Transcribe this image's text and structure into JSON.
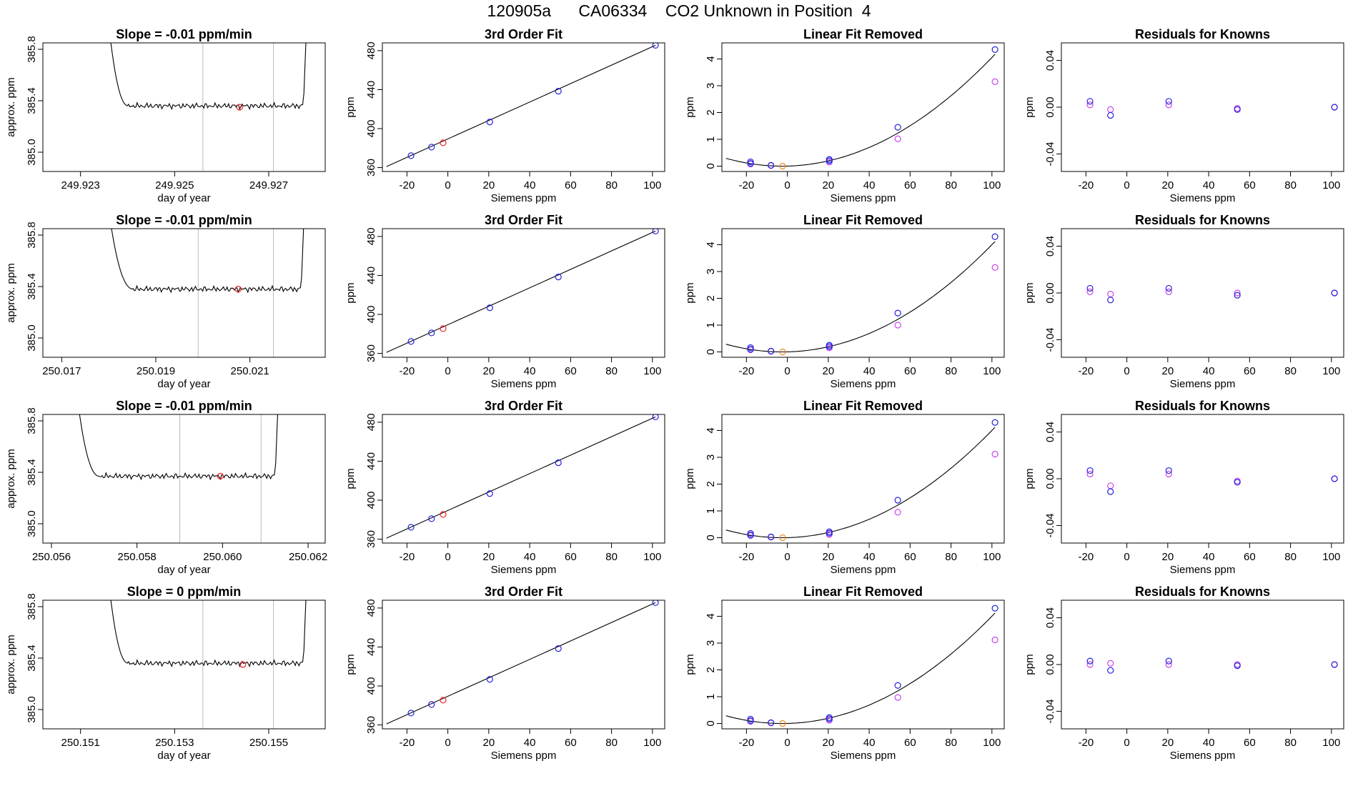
{
  "title": "120905a      CA06334    CO2 Unknown in Position  4",
  "colors": {
    "blue": "#2222dd",
    "red": "#ee2222",
    "magenta": "#cc44ee",
    "orange": "#ee8822",
    "line": "#000000",
    "vline": "#bbbbbb"
  },
  "chart_data": [
    {
      "panel": "time-series",
      "row": 1,
      "type": "line",
      "title": "Slope =  -0.01  ppm/min",
      "xlabel": "day of year",
      "ylabel": "approx. ppm",
      "xlim": [
        249.9222,
        249.9282
      ],
      "ylim": [
        384.85,
        385.85
      ],
      "xticks": [
        "249.923",
        "249.925",
        "249.927"
      ],
      "xtick_values": [
        249.923,
        249.925,
        249.927
      ],
      "yticks": [
        "385.0",
        "385.4",
        "385.8"
      ],
      "ytick_values": [
        385.0,
        385.4,
        385.8
      ],
      "vlines": [
        249.9256,
        249.9271
      ],
      "marker": {
        "x": 249.92638,
        "y": 385.35
      },
      "trace": {
        "x0": 249.9236,
        "x1": 249.9278,
        "steep_until": 249.924,
        "level": 385.36,
        "start": 385.95,
        "end": 385.95
      }
    },
    {
      "panel": "time-series",
      "row": 2,
      "type": "line",
      "title": "Slope =  -0.01  ppm/min",
      "xlabel": "day of year",
      "ylabel": "approx. ppm",
      "xlim": [
        250.0166,
        250.0226
      ],
      "ylim": [
        384.85,
        385.85
      ],
      "xticks": [
        "250.017",
        "250.019",
        "250.021"
      ],
      "xtick_values": [
        250.017,
        250.019,
        250.021
      ],
      "yticks": [
        "385.0",
        "385.4",
        "385.8"
      ],
      "ytick_values": [
        385.0,
        385.4,
        385.8
      ],
      "vlines": [
        250.0199,
        250.0215
      ],
      "marker": {
        "x": 250.02075,
        "y": 385.38
      },
      "trace": {
        "x0": 250.018,
        "x1": 250.02215,
        "steep_until": 250.0185,
        "level": 385.38,
        "start": 385.95,
        "end": 385.95
      }
    },
    {
      "panel": "time-series",
      "row": 3,
      "type": "line",
      "title": "Slope =  -0.01  ppm/min",
      "xlabel": "day of year",
      "ylabel": "approx. ppm",
      "xlim": [
        250.0558,
        250.0624
      ],
      "ylim": [
        384.85,
        385.85
      ],
      "xticks": [
        "250.056",
        "250.058",
        "250.060",
        "250.062"
      ],
      "xtick_values": [
        250.056,
        250.058,
        250.06,
        250.062
      ],
      "yticks": [
        "385.0",
        "385.4",
        "385.8"
      ],
      "ytick_values": [
        385.0,
        385.4,
        385.8
      ],
      "vlines": [
        250.059,
        250.0609
      ],
      "marker": {
        "x": 250.05995,
        "y": 385.37
      },
      "trace": {
        "x0": 250.0566,
        "x1": 250.0613,
        "steep_until": 250.0571,
        "level": 385.37,
        "start": 385.95,
        "end": 385.95
      }
    },
    {
      "panel": "time-series",
      "row": 4,
      "type": "line",
      "title": "Slope =  0  ppm/min",
      "xlabel": "day of year",
      "ylabel": "approx. ppm",
      "xlim": [
        250.1502,
        250.1562
      ],
      "ylim": [
        384.85,
        385.85
      ],
      "xticks": [
        "250.151",
        "250.153",
        "250.155"
      ],
      "xtick_values": [
        250.151,
        250.153,
        250.155
      ],
      "yticks": [
        "385.0",
        "385.4",
        "385.8"
      ],
      "ytick_values": [
        385.0,
        385.4,
        385.8
      ],
      "vlines": [
        250.1536,
        250.1551
      ],
      "marker": {
        "x": 250.15445,
        "y": 385.35
      },
      "trace": {
        "x0": 250.1516,
        "x1": 250.1558,
        "steep_until": 250.152,
        "level": 385.36,
        "start": 385.95,
        "end": 385.95
      }
    },
    {
      "panel": "fit",
      "row": 1,
      "type": "scatter",
      "title": "3rd Order Fit",
      "xlabel": "Siemens ppm",
      "ylabel": "ppm",
      "xlim": [
        -32,
        106
      ],
      "ylim": [
        356,
        488
      ],
      "xticks": [
        "-20",
        "0",
        "20",
        "40",
        "60",
        "80",
        "100"
      ],
      "xtick_values": [
        -20,
        0,
        20,
        40,
        60,
        80,
        100
      ],
      "yticks": [
        "360",
        "400",
        "440",
        "480"
      ],
      "ytick_values": [
        360,
        400,
        440,
        480
      ],
      "line": {
        "x": [
          -30,
          101.5
        ],
        "y": [
          361,
          485.5
        ]
      },
      "knowns": {
        "x": [
          -18,
          -8,
          20.5,
          54,
          101.5
        ],
        "y": [
          372.2,
          381,
          406.8,
          438.4,
          485.5
        ]
      },
      "unknown": {
        "x": [
          -2.3
        ],
        "y": [
          385.4
        ]
      }
    },
    {
      "panel": "fit",
      "row": 2,
      "type": "scatter",
      "title": "3rd Order Fit",
      "xlabel": "Siemens ppm",
      "ylabel": "ppm",
      "xlim": [
        -32,
        106
      ],
      "ylim": [
        356,
        488
      ],
      "xticks": [
        "-20",
        "0",
        "20",
        "40",
        "60",
        "80",
        "100"
      ],
      "xtick_values": [
        -20,
        0,
        20,
        40,
        60,
        80,
        100
      ],
      "yticks": [
        "360",
        "400",
        "440",
        "480"
      ],
      "ytick_values": [
        360,
        400,
        440,
        480
      ],
      "line": {
        "x": [
          -30,
          101.5
        ],
        "y": [
          361,
          485.5
        ]
      },
      "knowns": {
        "x": [
          -18,
          -8,
          20.5,
          54,
          101.5
        ],
        "y": [
          372.2,
          381,
          406.8,
          438.4,
          485.5
        ]
      },
      "unknown": {
        "x": [
          -2.3
        ],
        "y": [
          385.4
        ]
      }
    },
    {
      "panel": "fit",
      "row": 3,
      "type": "scatter",
      "title": "3rd Order Fit",
      "xlabel": "Siemens ppm",
      "ylabel": "ppm",
      "xlim": [
        -32,
        106
      ],
      "ylim": [
        356,
        488
      ],
      "xticks": [
        "-20",
        "0",
        "20",
        "40",
        "60",
        "80",
        "100"
      ],
      "xtick_values": [
        -20,
        0,
        20,
        40,
        60,
        80,
        100
      ],
      "yticks": [
        "360",
        "400",
        "440",
        "480"
      ],
      "ytick_values": [
        360,
        400,
        440,
        480
      ],
      "line": {
        "x": [
          -30,
          101.5
        ],
        "y": [
          361,
          485.5
        ]
      },
      "knowns": {
        "x": [
          -18,
          -8,
          20.5,
          54,
          101.5
        ],
        "y": [
          372.2,
          381,
          406.8,
          438.4,
          485.5
        ]
      },
      "unknown": {
        "x": [
          -2.3
        ],
        "y": [
          385.4
        ]
      }
    },
    {
      "panel": "fit",
      "row": 4,
      "type": "scatter",
      "title": "3rd Order Fit",
      "xlabel": "Siemens ppm",
      "ylabel": "ppm",
      "xlim": [
        -32,
        106
      ],
      "ylim": [
        356,
        488
      ],
      "xticks": [
        "-20",
        "0",
        "20",
        "40",
        "60",
        "80",
        "100"
      ],
      "xtick_values": [
        -20,
        0,
        20,
        40,
        60,
        80,
        100
      ],
      "yticks": [
        "360",
        "400",
        "440",
        "480"
      ],
      "ytick_values": [
        360,
        400,
        440,
        480
      ],
      "line": {
        "x": [
          -30,
          101.5
        ],
        "y": [
          361,
          485.5
        ]
      },
      "knowns": {
        "x": [
          -18,
          -8,
          20.5,
          54,
          101.5
        ],
        "y": [
          372.2,
          381,
          406.8,
          438.4,
          485.5
        ]
      },
      "unknown": {
        "x": [
          -2.3
        ],
        "y": [
          385.4
        ]
      }
    },
    {
      "panel": "linear-removed",
      "row": 1,
      "type": "scatter",
      "title": "Linear Fit Removed",
      "xlabel": "Siemens ppm",
      "ylabel": "ppm",
      "xlim": [
        -32,
        106
      ],
      "ylim": [
        -0.2,
        4.6
      ],
      "xticks": [
        "-20",
        "0",
        "20",
        "40",
        "60",
        "80",
        "100"
      ],
      "xtick_values": [
        -20,
        0,
        20,
        40,
        60,
        80,
        100
      ],
      "yticks": [
        "0",
        "1",
        "2",
        "3",
        "4"
      ],
      "ytick_values": [
        0,
        1,
        2,
        3,
        4
      ],
      "curve": {
        "x_from": -30,
        "x_to": 101.5,
        "vertex_x": -2.5,
        "a": 0.000386
      },
      "knowns_blue": {
        "x": [
          -18,
          -18,
          -8,
          20.5,
          20.5,
          54,
          101.5
        ],
        "y": [
          0.16,
          0.1,
          0.03,
          0.25,
          0.2,
          1.45,
          4.35
        ]
      },
      "knowns_magenta": {
        "x": [
          -18,
          -8,
          20.5,
          54,
          101.5
        ],
        "y": [
          0.08,
          0.02,
          0.15,
          1.02,
          3.15
        ]
      },
      "unknown": {
        "x": [
          -2.3
        ],
        "y": [
          0.0
        ]
      }
    },
    {
      "panel": "linear-removed",
      "row": 2,
      "type": "scatter",
      "title": "Linear Fit Removed",
      "xlabel": "Siemens ppm",
      "ylabel": "ppm",
      "xlim": [
        -32,
        106
      ],
      "ylim": [
        -0.2,
        4.6
      ],
      "xticks": [
        "-20",
        "0",
        "20",
        "40",
        "60",
        "80",
        "100"
      ],
      "xtick_values": [
        -20,
        0,
        20,
        40,
        60,
        80,
        100
      ],
      "yticks": [
        "0",
        "1",
        "2",
        "3",
        "4"
      ],
      "ytick_values": [
        0,
        1,
        2,
        3,
        4
      ],
      "curve": {
        "x_from": -30,
        "x_to": 101.5,
        "vertex_x": -2.5,
        "a": 0.000381
      },
      "knowns_blue": {
        "x": [
          -18,
          -18,
          -8,
          20.5,
          20.5,
          54,
          101.5
        ],
        "y": [
          0.16,
          0.1,
          0.03,
          0.25,
          0.2,
          1.45,
          4.3
        ]
      },
      "knowns_magenta": {
        "x": [
          -18,
          -8,
          20.5,
          54,
          101.5
        ],
        "y": [
          0.08,
          0.02,
          0.15,
          1.0,
          3.15
        ]
      },
      "unknown": {
        "x": [
          -2.3
        ],
        "y": [
          0.0
        ]
      }
    },
    {
      "panel": "linear-removed",
      "row": 3,
      "type": "scatter",
      "title": "Linear Fit Removed",
      "xlabel": "Siemens ppm",
      "ylabel": "ppm",
      "xlim": [
        -32,
        106
      ],
      "ylim": [
        -0.2,
        4.6
      ],
      "xticks": [
        "-20",
        "0",
        "20",
        "40",
        "60",
        "80",
        "100"
      ],
      "xtick_values": [
        -20,
        0,
        20,
        40,
        60,
        80,
        100
      ],
      "yticks": [
        "0",
        "1",
        "2",
        "3",
        "4"
      ],
      "ytick_values": [
        0,
        1,
        2,
        3,
        4
      ],
      "curve": {
        "x_from": -30,
        "x_to": 101.5,
        "vertex_x": -2.5,
        "a": 0.000381
      },
      "knowns_blue": {
        "x": [
          -18,
          -18,
          -8,
          20.5,
          20.5,
          54,
          101.5
        ],
        "y": [
          0.16,
          0.1,
          0.03,
          0.22,
          0.17,
          1.4,
          4.3
        ]
      },
      "knowns_magenta": {
        "x": [
          -18,
          -8,
          20.5,
          54,
          101.5
        ],
        "y": [
          0.08,
          0.02,
          0.12,
          0.95,
          3.12
        ]
      },
      "unknown": {
        "x": [
          -2.3
        ],
        "y": [
          0.0
        ]
      }
    },
    {
      "panel": "linear-removed",
      "row": 4,
      "type": "scatter",
      "title": "Linear Fit Removed",
      "xlabel": "Siemens ppm",
      "ylabel": "ppm",
      "xlim": [
        -32,
        106
      ],
      "ylim": [
        -0.2,
        4.6
      ],
      "xticks": [
        "-20",
        "0",
        "20",
        "40",
        "60",
        "80",
        "100"
      ],
      "xtick_values": [
        -20,
        0,
        20,
        40,
        60,
        80,
        100
      ],
      "yticks": [
        "0",
        "1",
        "2",
        "3",
        "4"
      ],
      "ytick_values": [
        0,
        1,
        2,
        3,
        4
      ],
      "curve": {
        "x_from": -30,
        "x_to": 101.5,
        "vertex_x": -2.5,
        "a": 0.000381
      },
      "knowns_blue": {
        "x": [
          -18,
          -18,
          -8,
          20.5,
          20.5,
          54,
          101.5
        ],
        "y": [
          0.16,
          0.1,
          0.03,
          0.22,
          0.17,
          1.42,
          4.3
        ]
      },
      "knowns_magenta": {
        "x": [
          -18,
          -8,
          20.5,
          54,
          101.5
        ],
        "y": [
          0.08,
          0.02,
          0.12,
          0.97,
          3.12
        ]
      },
      "unknown": {
        "x": [
          -2.3
        ],
        "y": [
          0.0
        ]
      }
    },
    {
      "panel": "residuals",
      "row": 1,
      "type": "scatter",
      "title": "Residuals for Knowns",
      "xlabel": "Siemens ppm",
      "ylabel": "ppm",
      "xlim": [
        -32,
        106
      ],
      "ylim": [
        -0.055,
        0.055
      ],
      "xticks": [
        "-20",
        "0",
        "20",
        "40",
        "60",
        "80",
        "100"
      ],
      "xtick_values": [
        -20,
        0,
        20,
        40,
        60,
        80,
        100
      ],
      "yticks": [
        "-0.04",
        "0.00",
        "0.04"
      ],
      "ytick_values": [
        -0.04,
        0.0,
        0.04
      ],
      "blue": {
        "x": [
          -18,
          -8,
          20.5,
          54,
          101.5
        ],
        "y": [
          0.005,
          -0.007,
          0.005,
          -0.002,
          0.0
        ]
      },
      "magenta": {
        "x": [
          -18,
          -8,
          20.5,
          54,
          101.5
        ],
        "y": [
          0.002,
          -0.002,
          0.002,
          -0.001,
          0.0
        ]
      }
    },
    {
      "panel": "residuals",
      "row": 2,
      "type": "scatter",
      "title": "Residuals for Knowns",
      "xlabel": "Siemens ppm",
      "ylabel": "ppm",
      "xlim": [
        -32,
        106
      ],
      "ylim": [
        -0.055,
        0.055
      ],
      "xticks": [
        "-20",
        "0",
        "20",
        "40",
        "60",
        "80",
        "100"
      ],
      "xtick_values": [
        -20,
        0,
        20,
        40,
        60,
        80,
        100
      ],
      "yticks": [
        "-0.04",
        "0.00",
        "0.04"
      ],
      "ytick_values": [
        -0.04,
        0.0,
        0.04
      ],
      "blue": {
        "x": [
          -18,
          -8,
          20.5,
          54,
          101.5
        ],
        "y": [
          0.004,
          -0.006,
          0.004,
          -0.002,
          0.0
        ]
      },
      "magenta": {
        "x": [
          -18,
          -8,
          20.5,
          54,
          101.5
        ],
        "y": [
          0.001,
          -0.001,
          0.001,
          0.0,
          0.0
        ]
      }
    },
    {
      "panel": "residuals",
      "row": 3,
      "type": "scatter",
      "title": "Residuals for Knowns",
      "xlabel": "Siemens ppm",
      "ylabel": "ppm",
      "xlim": [
        -32,
        106
      ],
      "ylim": [
        -0.055,
        0.055
      ],
      "xticks": [
        "-20",
        "0",
        "20",
        "40",
        "60",
        "80",
        "100"
      ],
      "xtick_values": [
        -20,
        0,
        20,
        40,
        60,
        80,
        100
      ],
      "yticks": [
        "-0.04",
        "0.00",
        "0.04"
      ],
      "ytick_values": [
        -0.04,
        0.0,
        0.04
      ],
      "blue": {
        "x": [
          -18,
          -8,
          20.5,
          54,
          101.5
        ],
        "y": [
          0.007,
          -0.011,
          0.007,
          -0.003,
          0.0
        ]
      },
      "magenta": {
        "x": [
          -18,
          -8,
          20.5,
          54,
          101.5
        ],
        "y": [
          0.004,
          -0.006,
          0.004,
          -0.002,
          0.0
        ]
      }
    },
    {
      "panel": "residuals",
      "row": 4,
      "type": "scatter",
      "title": "Residuals for Knowns",
      "xlabel": "Siemens ppm",
      "ylabel": "ppm",
      "xlim": [
        -32,
        106
      ],
      "ylim": [
        -0.055,
        0.055
      ],
      "xticks": [
        "-20",
        "0",
        "20",
        "40",
        "60",
        "80",
        "100"
      ],
      "xtick_values": [
        -20,
        0,
        20,
        40,
        60,
        80,
        100
      ],
      "yticks": [
        "-0.04",
        "0.00",
        "0.04"
      ],
      "ytick_values": [
        -0.04,
        0.0,
        0.04
      ],
      "blue": {
        "x": [
          -18,
          -8,
          20.5,
          54,
          101.5
        ],
        "y": [
          0.003,
          -0.005,
          0.003,
          -0.001,
          0.0
        ]
      },
      "magenta": {
        "x": [
          -18,
          -8,
          20.5,
          54,
          101.5
        ],
        "y": [
          0.0,
          0.001,
          0.0,
          0.0,
          0.0
        ]
      }
    }
  ]
}
